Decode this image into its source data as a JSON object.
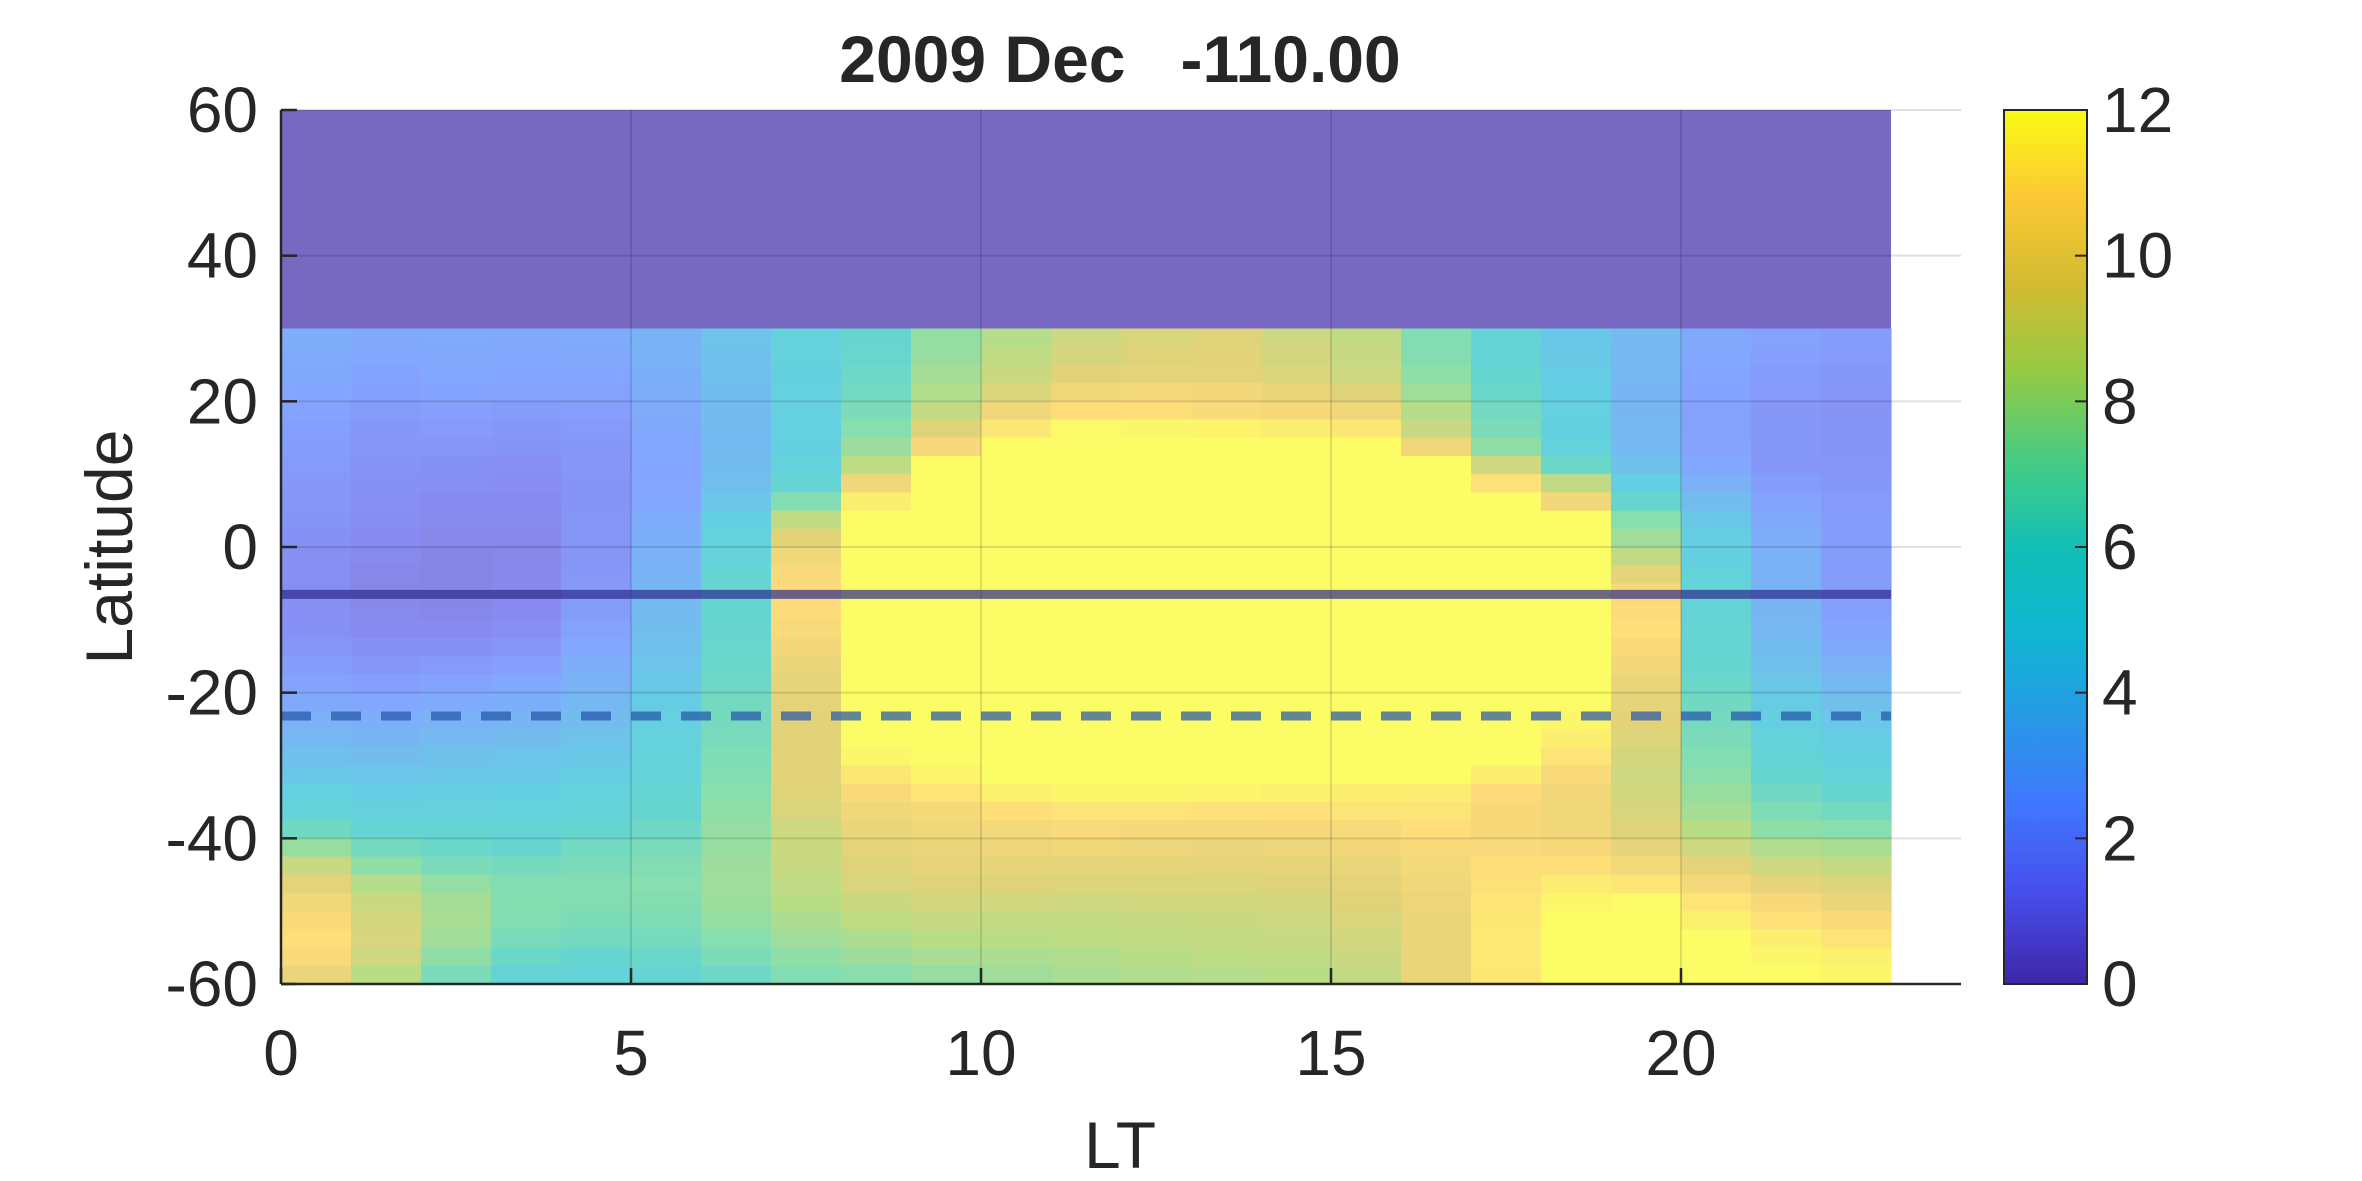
{
  "chart_data": {
    "type": "heatmap",
    "title": "2009 Dec   -110.00",
    "xlabel": "LT",
    "ylabel": "Latitude",
    "xlim": [
      0,
      24
    ],
    "ylim": [
      -60,
      60
    ],
    "x_ticks": [
      0,
      5,
      10,
      15,
      20
    ],
    "y_ticks": [
      -60,
      -40,
      -20,
      0,
      20,
      40,
      60
    ],
    "colorbar": {
      "min": 0,
      "max": 12,
      "ticks": [
        0,
        2,
        4,
        6,
        8,
        10,
        12
      ]
    },
    "grid": true,
    "x_centers": [
      0.5,
      1.5,
      2.5,
      3.5,
      4.5,
      5.5,
      6.5,
      7.5,
      8.5,
      9.5,
      10.5,
      11.5,
      12.5,
      13.5,
      14.5,
      15.5,
      16.5,
      17.5,
      18.5,
      19.5,
      20.5,
      21.5,
      22.5
    ],
    "masked_region": {
      "lat_from": 30,
      "lat_to": 60,
      "color": "#7768c2"
    },
    "lat_edges": [
      30,
      27.5,
      25,
      22.5,
      20,
      17.5,
      15,
      12.5,
      10,
      7.5,
      5,
      2.5,
      0,
      -2.5,
      -5,
      -7.5,
      -10,
      -12.5,
      -15,
      -17.5,
      -20,
      -22.5,
      -25,
      -27.5,
      -30,
      -32.5,
      -35,
      -37.5,
      -40,
      -42.5,
      -45,
      -47.5,
      -50,
      -52.5,
      -55,
      -57.5,
      -60
    ],
    "rows": [
      {
        "lat": 28.75,
        "values": [
          2.8,
          2.6,
          2.7,
          2.6,
          2.7,
          3.2,
          4.0,
          5.2,
          6.0,
          7.5,
          8.3,
          9.0,
          9.3,
          9.5,
          9.0,
          8.6,
          7.0,
          5.5,
          4.4,
          3.5,
          2.6,
          2.2,
          2.0
        ]
      },
      {
        "lat": 26.25,
        "values": [
          2.7,
          2.5,
          2.6,
          2.5,
          2.6,
          3.1,
          3.9,
          5.1,
          6.1,
          7.6,
          8.6,
          9.2,
          9.5,
          9.6,
          9.2,
          8.8,
          7.1,
          5.6,
          4.4,
          3.4,
          2.5,
          2.1,
          1.9
        ]
      },
      {
        "lat": 23.75,
        "values": [
          2.6,
          2.3,
          2.5,
          2.4,
          2.4,
          2.9,
          3.8,
          5.0,
          6.3,
          7.9,
          8.9,
          9.6,
          9.7,
          9.7,
          9.4,
          9.0,
          7.4,
          5.9,
          4.6,
          3.4,
          2.4,
          2.0,
          1.8
        ]
      },
      {
        "lat": 21.25,
        "values": [
          2.4,
          2.1,
          2.3,
          2.2,
          2.2,
          2.8,
          3.7,
          4.9,
          6.5,
          8.2,
          9.4,
          10.2,
          10.4,
          10.3,
          10.0,
          9.5,
          7.8,
          6.2,
          4.8,
          3.3,
          2.3,
          1.9,
          1.7
        ]
      },
      {
        "lat": 18.75,
        "values": [
          2.3,
          2.0,
          2.1,
          2.0,
          2.1,
          2.7,
          3.6,
          4.9,
          6.8,
          8.7,
          10.2,
          10.9,
          10.9,
          10.7,
          10.5,
          10.2,
          8.3,
          6.5,
          4.9,
          3.3,
          2.2,
          1.8,
          1.6
        ]
      },
      {
        "lat": 16.25,
        "values": [
          2.1,
          1.8,
          1.9,
          1.8,
          1.9,
          2.6,
          3.5,
          4.9,
          7.2,
          9.5,
          11.2,
          11.9,
          11.8,
          11.7,
          11.5,
          11.2,
          8.8,
          6.8,
          5.0,
          3.4,
          2.2,
          1.8,
          1.6
        ]
      },
      {
        "lat": 13.75,
        "values": [
          2.0,
          1.7,
          1.7,
          1.6,
          1.8,
          2.5,
          3.5,
          5.0,
          7.7,
          10.5,
          12.0,
          12.0,
          12.0,
          12.0,
          12.0,
          12.0,
          10.2,
          7.4,
          5.3,
          3.5,
          2.3,
          1.8,
          1.6
        ]
      },
      {
        "lat": 11.25,
        "values": [
          1.9,
          1.6,
          1.5,
          1.4,
          1.7,
          2.4,
          3.6,
          5.3,
          8.5,
          12.0,
          12.0,
          12.0,
          12.0,
          12.0,
          12.0,
          12.0,
          12.0,
          9.0,
          6.2,
          3.9,
          2.5,
          1.8,
          1.7
        ]
      },
      {
        "lat": 8.75,
        "values": [
          1.8,
          1.5,
          1.4,
          1.3,
          1.6,
          2.4,
          3.8,
          5.7,
          10.2,
          12.0,
          12.0,
          12.0,
          12.0,
          12.0,
          12.0,
          12.0,
          12.0,
          11.0,
          8.6,
          4.8,
          3.0,
          2.0,
          1.8
        ]
      },
      {
        "lat": 6.25,
        "values": [
          1.7,
          1.4,
          1.2,
          1.2,
          1.6,
          2.5,
          4.2,
          7.0,
          11.5,
          12.0,
          12.0,
          12.0,
          12.0,
          12.0,
          12.0,
          12.0,
          12.0,
          12.0,
          10.3,
          6.0,
          3.6,
          2.3,
          1.9
        ]
      },
      {
        "lat": 3.75,
        "values": [
          1.6,
          1.3,
          1.1,
          1.1,
          1.7,
          2.7,
          4.8,
          8.6,
          12.0,
          12.0,
          12.0,
          12.0,
          12.0,
          12.0,
          12.0,
          12.0,
          12.0,
          12.0,
          12.0,
          7.2,
          4.3,
          2.6,
          2.0
        ]
      },
      {
        "lat": 1.25,
        "values": [
          1.5,
          1.2,
          1.0,
          1.0,
          1.7,
          2.9,
          5.2,
          9.6,
          12.0,
          12.0,
          12.0,
          12.0,
          12.0,
          12.0,
          12.0,
          12.0,
          12.0,
          12.0,
          12.0,
          7.8,
          4.7,
          2.8,
          2.0
        ]
      },
      {
        "lat": -1.25,
        "values": [
          1.4,
          1.1,
          0.9,
          1.0,
          1.7,
          3.0,
          5.5,
          10.2,
          12.0,
          12.0,
          12.0,
          12.0,
          12.0,
          12.0,
          12.0,
          12.0,
          12.0,
          12.0,
          12.0,
          8.6,
          5.0,
          3.0,
          2.0
        ]
      },
      {
        "lat": -3.75,
        "values": [
          1.4,
          1.0,
          0.9,
          1.0,
          1.8,
          3.2,
          5.7,
          10.6,
          12.0,
          12.0,
          12.0,
          12.0,
          12.0,
          12.0,
          12.0,
          12.0,
          12.0,
          12.0,
          12.0,
          9.8,
          5.3,
          3.1,
          2.0
        ]
      },
      {
        "lat": -6.25,
        "values": [
          1.3,
          1.0,
          0.9,
          1.1,
          1.9,
          3.3,
          5.8,
          10.8,
          12.0,
          12.0,
          12.0,
          12.0,
          12.0,
          12.0,
          12.0,
          12.0,
          12.0,
          12.0,
          12.0,
          10.5,
          5.5,
          3.2,
          2.0
        ]
      },
      {
        "lat": -8.75,
        "values": [
          1.4,
          1.1,
          1.0,
          1.2,
          2.0,
          3.5,
          5.9,
          10.8,
          12.0,
          12.0,
          12.0,
          12.0,
          12.0,
          12.0,
          12.0,
          12.0,
          12.0,
          12.0,
          12.0,
          10.8,
          5.6,
          3.3,
          2.1
        ]
      },
      {
        "lat": -11.25,
        "values": [
          1.5,
          1.2,
          1.2,
          1.4,
          2.2,
          3.7,
          6.0,
          10.6,
          12.0,
          12.0,
          12.0,
          12.0,
          12.0,
          12.0,
          12.0,
          12.0,
          12.0,
          12.0,
          12.0,
          10.9,
          5.7,
          3.4,
          2.3
        ]
      },
      {
        "lat": -13.75,
        "values": [
          1.7,
          1.5,
          1.5,
          1.7,
          2.5,
          3.9,
          6.1,
          10.3,
          12.0,
          12.0,
          12.0,
          12.0,
          12.0,
          12.0,
          12.0,
          12.0,
          12.0,
          12.0,
          12.0,
          10.6,
          5.8,
          3.6,
          2.6
        ]
      },
      {
        "lat": -16.25,
        "values": [
          2.0,
          1.8,
          1.9,
          2.1,
          2.8,
          4.1,
          6.2,
          10.0,
          12.0,
          12.0,
          12.0,
          12.0,
          12.0,
          12.0,
          12.0,
          12.0,
          12.0,
          12.0,
          12.0,
          10.3,
          6.0,
          3.9,
          3.0
        ]
      },
      {
        "lat": -18.75,
        "values": [
          2.3,
          2.1,
          2.3,
          2.5,
          3.1,
          4.4,
          6.3,
          9.8,
          12.0,
          12.0,
          12.0,
          12.0,
          12.0,
          12.0,
          12.0,
          12.0,
          12.0,
          12.0,
          12.0,
          10.0,
          6.2,
          4.3,
          3.4
        ]
      },
      {
        "lat": -21.25,
        "values": [
          2.6,
          2.5,
          2.7,
          2.9,
          3.4,
          4.6,
          6.5,
          9.7,
          12.0,
          12.0,
          12.0,
          12.0,
          12.0,
          12.0,
          12.0,
          12.0,
          12.0,
          12.0,
          12.0,
          9.8,
          6.4,
          4.6,
          3.8
        ]
      },
      {
        "lat": -23.75,
        "values": [
          3.0,
          2.9,
          3.1,
          3.3,
          3.7,
          4.9,
          6.6,
          9.6,
          12.0,
          12.0,
          12.0,
          12.0,
          12.0,
          12.0,
          12.0,
          12.0,
          12.0,
          12.0,
          11.8,
          9.6,
          6.6,
          5.0,
          4.2
        ]
      },
      {
        "lat": -26.25,
        "values": [
          3.4,
          3.3,
          3.5,
          3.7,
          4.0,
          5.1,
          6.7,
          9.6,
          12.0,
          12.0,
          12.0,
          12.0,
          12.0,
          12.0,
          12.0,
          12.0,
          12.0,
          12.0,
          11.5,
          9.4,
          6.8,
          5.3,
          4.6
        ]
      },
      {
        "lat": -28.75,
        "values": [
          3.8,
          3.7,
          3.9,
          4.1,
          4.4,
          5.3,
          6.9,
          9.6,
          11.8,
          12.0,
          12.0,
          12.0,
          12.0,
          12.0,
          12.0,
          12.0,
          12.0,
          12.0,
          11.1,
          9.2,
          7.0,
          5.6,
          5.0
        ]
      },
      {
        "lat": -31.25,
        "values": [
          4.3,
          4.2,
          4.3,
          4.4,
          4.7,
          5.5,
          7.0,
          9.6,
          11.2,
          11.7,
          12.0,
          12.0,
          12.0,
          12.0,
          12.0,
          12.0,
          12.0,
          11.5,
          10.6,
          9.0,
          7.3,
          6.0,
          5.5
        ]
      },
      {
        "lat": -33.75,
        "values": [
          4.9,
          4.6,
          4.7,
          4.8,
          5.1,
          5.8,
          7.2,
          9.5,
          10.6,
          11.1,
          11.6,
          11.8,
          11.8,
          11.7,
          11.6,
          11.5,
          11.4,
          10.8,
          10.3,
          9.1,
          7.6,
          6.4,
          6.0
        ]
      },
      {
        "lat": -36.25,
        "values": [
          5.5,
          5.1,
          5.2,
          5.2,
          5.5,
          6.0,
          7.4,
          9.3,
          10.2,
          10.5,
          10.9,
          11.1,
          11.1,
          11.0,
          11.0,
          11.1,
          11.1,
          10.5,
          10.2,
          9.3,
          7.9,
          6.9,
          6.5
        ]
      },
      {
        "lat": -38.75,
        "values": [
          6.4,
          5.7,
          5.7,
          5.6,
          5.9,
          6.3,
          7.5,
          9.0,
          9.9,
          10.2,
          10.4,
          10.6,
          10.5,
          10.4,
          10.5,
          10.6,
          10.9,
          10.5,
          10.3,
          9.5,
          8.4,
          7.4,
          7.2
        ]
      },
      {
        "lat": -41.25,
        "values": [
          7.6,
          6.5,
          6.2,
          6.0,
          6.5,
          6.7,
          7.6,
          8.9,
          9.7,
          10.0,
          10.1,
          10.2,
          10.1,
          10.0,
          10.1,
          10.3,
          10.6,
          10.7,
          10.5,
          9.8,
          9.0,
          8.2,
          8.0
        ]
      },
      {
        "lat": -43.75,
        "values": [
          8.8,
          7.4,
          6.8,
          6.6,
          6.8,
          7.0,
          7.7,
          8.8,
          9.5,
          9.8,
          9.8,
          9.8,
          9.8,
          9.7,
          9.8,
          10.0,
          10.4,
          10.9,
          10.9,
          10.4,
          9.7,
          9.0,
          8.7
        ]
      },
      {
        "lat": -46.25,
        "values": [
          9.7,
          8.3,
          7.5,
          7.0,
          7.0,
          7.2,
          7.8,
          8.6,
          9.3,
          9.5,
          9.5,
          9.4,
          9.4,
          9.4,
          9.5,
          9.7,
          10.2,
          11.0,
          11.4,
          11.2,
          10.4,
          9.8,
          9.4
        ]
      },
      {
        "lat": -48.75,
        "values": [
          10.2,
          8.9,
          7.9,
          7.1,
          7.0,
          7.1,
          7.7,
          8.4,
          8.9,
          9.2,
          9.1,
          9.0,
          9.1,
          9.1,
          9.2,
          9.5,
          10.1,
          11.1,
          11.8,
          11.9,
          11.1,
          10.5,
          10.0
        ]
      },
      {
        "lat": -51.25,
        "values": [
          10.6,
          9.2,
          8.0,
          7.0,
          6.8,
          6.9,
          7.5,
          8.1,
          8.5,
          8.8,
          8.7,
          8.7,
          8.8,
          8.9,
          9.0,
          9.3,
          10.0,
          11.2,
          12.0,
          12.0,
          11.6,
          11.0,
          10.6
        ]
      },
      {
        "lat": -53.75,
        "values": [
          10.9,
          9.3,
          7.8,
          6.7,
          6.5,
          6.6,
          7.2,
          7.8,
          8.1,
          8.4,
          8.4,
          8.5,
          8.6,
          8.7,
          8.8,
          9.1,
          10.0,
          11.3,
          12.0,
          12.0,
          12.0,
          11.5,
          11.1
        ]
      },
      {
        "lat": -56.25,
        "values": [
          10.6,
          9.0,
          7.4,
          6.2,
          6.0,
          6.2,
          6.8,
          7.4,
          7.7,
          8.0,
          8.1,
          8.2,
          8.4,
          8.5,
          8.6,
          8.9,
          10.0,
          11.3,
          12.0,
          12.0,
          12.0,
          11.8,
          11.6
        ]
      },
      {
        "lat": -58.75,
        "values": [
          10.0,
          8.4,
          6.8,
          5.6,
          5.5,
          5.7,
          6.3,
          7.0,
          7.3,
          7.6,
          7.8,
          8.0,
          8.2,
          8.3,
          8.4,
          8.7,
          10.0,
          11.2,
          12.0,
          12.0,
          12.0,
          12.0,
          11.8
        ]
      }
    ],
    "reference_lines": [
      {
        "style": "solid",
        "lat": -6.5,
        "color": "#2b2b8a"
      },
      {
        "style": "dashed",
        "lat": -23.2,
        "color": "#2452a8"
      }
    ]
  }
}
